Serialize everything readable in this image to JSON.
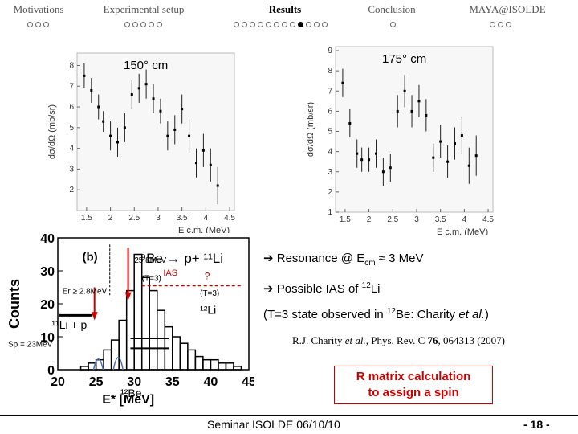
{
  "nav": {
    "sections": [
      {
        "label": "Motivations",
        "dots": 3,
        "active_dot": -1
      },
      {
        "label": "Experimental setup",
        "dots": 5,
        "active_dot": -1
      },
      {
        "label": "Results",
        "dots": 12,
        "active_dot": 8
      },
      {
        "label": "Conclusion",
        "dots": 1,
        "active_dot": -1
      },
      {
        "label": "MAYA@ISOLDE",
        "dots": 3,
        "active_dot": -1
      }
    ],
    "active_section": 2
  },
  "chart_data": [
    {
      "type": "scatter",
      "title": "150° cm",
      "xlabel": "E c.m. (MeV)",
      "ylabel": "dσ/dΩ (mb/sr)",
      "xlim": [
        1.3,
        4.6
      ],
      "ylim": [
        1,
        8.6
      ],
      "xticks": [
        "1.5",
        "2",
        "2.5",
        "3",
        "3.5",
        "4",
        "4.5"
      ],
      "yticks": [
        "2",
        "3",
        "4",
        "5",
        "6",
        "7",
        "8"
      ],
      "x": [
        1.45,
        1.6,
        1.75,
        1.85,
        2.0,
        2.15,
        2.3,
        2.45,
        2.6,
        2.75,
        2.9,
        3.05,
        3.2,
        3.35,
        3.5,
        3.65,
        3.8,
        3.95,
        4.1,
        4.25
      ],
      "y": [
        7.5,
        6.8,
        6.0,
        5.3,
        4.6,
        4.3,
        5.0,
        6.6,
        6.9,
        7.1,
        6.4,
        5.8,
        4.6,
        4.9,
        5.9,
        4.6,
        3.3,
        3.9,
        3.2,
        2.2
      ],
      "err": [
        0.6,
        0.6,
        0.6,
        0.5,
        0.7,
        0.7,
        0.7,
        0.7,
        0.7,
        0.7,
        0.7,
        0.6,
        0.7,
        0.7,
        0.7,
        0.8,
        0.7,
        0.8,
        0.8,
        0.9
      ]
    },
    {
      "type": "scatter",
      "title": "175° cm",
      "xlabel": "E c.m. (MeV)",
      "ylabel": "dσ/dΩ (mb/sr)",
      "xlim": [
        1.3,
        4.6
      ],
      "ylim": [
        1,
        9.2
      ],
      "xticks": [
        "1.5",
        "2",
        "2.5",
        "3",
        "3.5",
        "4",
        "4.5"
      ],
      "yticks": [
        "1",
        "2",
        "3",
        "4",
        "5",
        "6",
        "7",
        "8",
        "9"
      ],
      "x": [
        1.45,
        1.6,
        1.75,
        1.85,
        2.0,
        2.15,
        2.3,
        2.45,
        2.6,
        2.75,
        2.9,
        3.05,
        3.2,
        3.35,
        3.5,
        3.65,
        3.8,
        3.95,
        4.1,
        4.25
      ],
      "y": [
        7.4,
        5.4,
        3.9,
        3.6,
        3.6,
        3.9,
        3.0,
        3.2,
        6.0,
        7.0,
        6.0,
        6.5,
        5.8,
        3.7,
        4.5,
        3.5,
        4.4,
        4.8,
        3.3,
        3.8
      ],
      "err": [
        0.7,
        0.7,
        0.7,
        0.6,
        0.6,
        0.7,
        0.7,
        0.7,
        0.8,
        0.8,
        0.8,
        0.8,
        0.8,
        0.7,
        0.8,
        0.8,
        0.8,
        0.9,
        0.9,
        1.0
      ]
    },
    {
      "type": "bar",
      "panel": "(b)",
      "xlabel": "E* [MeV]",
      "ylabel": "Counts",
      "xlim": [
        20,
        45
      ],
      "ylim": [
        0,
        40
      ],
      "xticks": [
        "20",
        "25",
        "30",
        "35",
        "40",
        "45"
      ],
      "yticks": [
        "0",
        "10",
        "20",
        "30",
        "40"
      ],
      "categories": [
        "23",
        "24",
        "25",
        "26",
        "27",
        "28",
        "29",
        "30",
        "31",
        "32",
        "33",
        "34",
        "35",
        "36",
        "37",
        "38",
        "39",
        "40",
        "41",
        "42",
        "43"
      ],
      "values": [
        1,
        2,
        3,
        6,
        9,
        15,
        24,
        35,
        28,
        24,
        18,
        13,
        10,
        8,
        6,
        4,
        3,
        3,
        2,
        2,
        1
      ],
      "annotations": {
        "reaction": "⁹Be → p+ ¹¹Li",
        "state1": "25.8MeV",
        "state1_t": "(T=3)",
        "ias": "IAS",
        "question": "?",
        "er": "Er ≥ 2.8MeV",
        "t3": "(T=3)",
        "li12": "¹²Li",
        "li11p": "¹¹Li + p",
        "sp": "Sp = 23MeV",
        "be12": "¹²Be"
      }
    }
  ],
  "bullets": {
    "b1_prefix": "Resonance @ E",
    "b1_sub": "cm",
    "b1_suffix": " ≈ 3 MeV",
    "b2_prefix": "Possible IAS of ",
    "b2_sup": "12",
    "b2_suffix": "Li",
    "b3_prefix": "(T=3 state observed in ",
    "b3_sup": "12",
    "b3_mid": "Be: Charity ",
    "b3_em": "et al.",
    "b3_suffix": ")",
    "arrow": "➔"
  },
  "reference": {
    "authors": "R.J. Charity ",
    "etal": "et al.",
    "journal": ", Phys. Rev. C ",
    "volume": "76",
    "pages": ", 064313 (2007)"
  },
  "rmatrix": {
    "line1": "R matrix calculation",
    "line2": "to assign a spin"
  },
  "footer": {
    "text": "Seminar ISOLDE 06/10/10",
    "page": "- 18 -"
  },
  "colors": {
    "accent_red": "#cc0000",
    "fit_blue": "#4a6fb5",
    "text": "#000000"
  }
}
